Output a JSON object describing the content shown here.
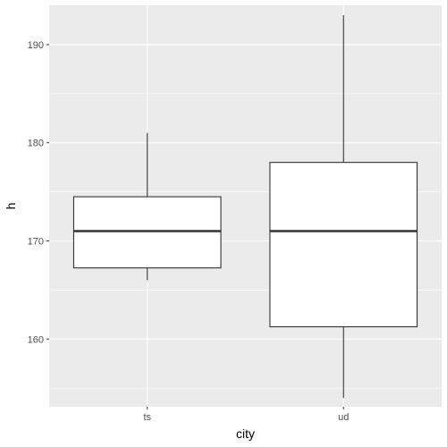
{
  "chart_data": {
    "type": "boxplot",
    "xlabel": "city",
    "ylabel": "h",
    "categories": [
      "ts",
      "ud"
    ],
    "boxes": [
      {
        "category": "ts",
        "whisker_low": 166,
        "q1": 167.25,
        "median": 171,
        "q3": 174.5,
        "whisker_high": 181
      },
      {
        "category": "ud",
        "whisker_low": 154,
        "q1": 161.25,
        "median": 171,
        "q3": 178,
        "whisker_high": 193
      }
    ],
    "ylim": [
      153.1,
      194.0
    ],
    "y_ticks": [
      160,
      170,
      180,
      190
    ],
    "grid": true,
    "legend": "none",
    "colors": {
      "panel": "#ebebeb",
      "grid_major": "#ffffff",
      "box_fill": "#ffffff",
      "box_stroke": "#333333",
      "tick_mark": "#333333"
    }
  }
}
